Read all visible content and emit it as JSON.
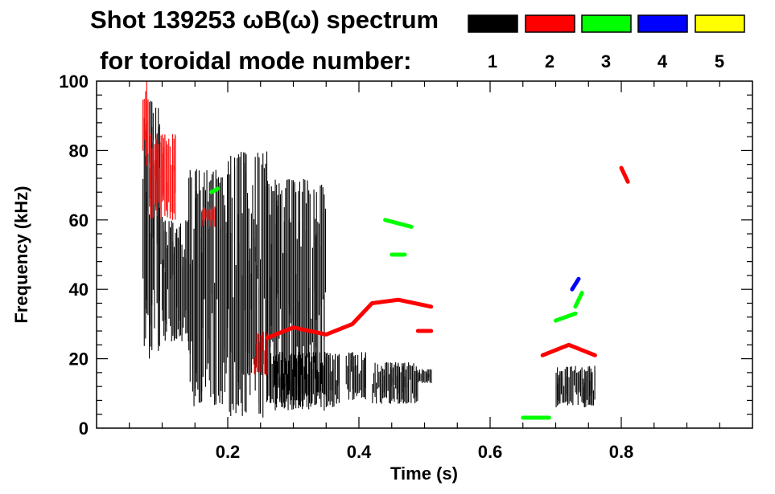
{
  "chart_data": {
    "type": "heatmap",
    "title_line1": "Shot 139253 ωB(ω) spectrum",
    "title_line2": "for toroidal mode number:",
    "xlabel": "Time (s)",
    "ylabel": "Frequency (kHz)",
    "xlim": [
      0.0,
      1.0
    ],
    "ylim": [
      0,
      100
    ],
    "xticks": [
      0.2,
      0.4,
      0.6,
      0.8
    ],
    "yticks": [
      0,
      20,
      40,
      60,
      80,
      100
    ],
    "legend": [
      {
        "mode": "1",
        "color": "#000000"
      },
      {
        "mode": "2",
        "color": "#ff0000"
      },
      {
        "mode": "3",
        "color": "#00ff00"
      },
      {
        "mode": "4",
        "color": "#0000ff"
      },
      {
        "mode": "5",
        "color": "#ffff00"
      }
    ],
    "series": [
      {
        "mode": "1",
        "color": "#000000",
        "regions": [
          {
            "t": [
              0.07,
              0.1
            ],
            "f": [
              20,
              95
            ]
          },
          {
            "t": [
              0.1,
              0.14
            ],
            "f": [
              25,
              60
            ]
          },
          {
            "t": [
              0.14,
              0.2
            ],
            "f": [
              6,
              75
            ]
          },
          {
            "t": [
              0.2,
              0.26
            ],
            "f": [
              3,
              80
            ]
          },
          {
            "t": [
              0.26,
              0.35
            ],
            "f": [
              5,
              72
            ]
          },
          {
            "t": [
              0.265,
              0.37
            ],
            "f": [
              6,
              22
            ]
          },
          {
            "t": [
              0.38,
              0.41
            ],
            "f": [
              8,
              22
            ]
          },
          {
            "t": [
              0.42,
              0.49
            ],
            "f": [
              7,
              19
            ]
          },
          {
            "t": [
              0.49,
              0.51
            ],
            "f": [
              13,
              17
            ]
          },
          {
            "t": [
              0.7,
              0.76
            ],
            "f": [
              6,
              18
            ]
          }
        ]
      },
      {
        "mode": "2",
        "color": "#ff0000",
        "regions": [
          {
            "t": [
              0.07,
              0.08
            ],
            "f": [
              75,
              100
            ]
          },
          {
            "t": [
              0.08,
              0.12
            ],
            "f": [
              60,
              85
            ]
          },
          {
            "t": [
              0.16,
              0.18
            ],
            "f": [
              58,
              64
            ]
          },
          {
            "t": [
              0.24,
              0.26
            ],
            "f": [
              15,
              28
            ]
          }
        ],
        "lines": [
          {
            "t": [
              0.26,
              0.3,
              0.35,
              0.39,
              0.42,
              0.46,
              0.51
            ],
            "f": [
              26,
              29,
              27,
              30,
              36,
              37,
              35
            ]
          },
          {
            "t": [
              0.49,
              0.51
            ],
            "f": [
              28,
              28
            ]
          },
          {
            "t": [
              0.68,
              0.72,
              0.76
            ],
            "f": [
              21,
              24,
              21
            ]
          },
          {
            "t": [
              0.8,
              0.81
            ],
            "f": [
              75,
              71
            ]
          }
        ]
      },
      {
        "mode": "3",
        "color": "#00ff00",
        "lines": [
          {
            "t": [
              0.175,
              0.185
            ],
            "f": [
              68,
              69
            ]
          },
          {
            "t": [
              0.44,
              0.48
            ],
            "f": [
              60,
              58
            ]
          },
          {
            "t": [
              0.45,
              0.47
            ],
            "f": [
              50,
              50
            ]
          },
          {
            "t": [
              0.65,
              0.69
            ],
            "f": [
              3,
              3
            ]
          },
          {
            "t": [
              0.7,
              0.73
            ],
            "f": [
              31,
              33
            ]
          },
          {
            "t": [
              0.73,
              0.74
            ],
            "f": [
              35,
              39
            ]
          }
        ]
      },
      {
        "mode": "4",
        "color": "#0000ff",
        "lines": [
          {
            "t": [
              0.725,
              0.735
            ],
            "f": [
              40,
              43
            ]
          }
        ]
      }
    ]
  }
}
